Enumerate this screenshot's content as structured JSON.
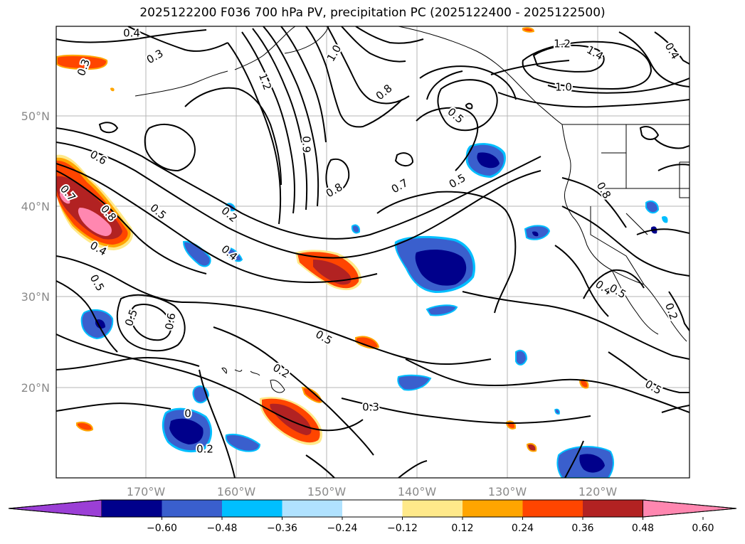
{
  "title": "2025122200 F036 700 hPa PV, precipitation PC (2025122400 - 2025122500)",
  "map": {
    "lat_ticks": [
      "50°N",
      "40°N",
      "30°N",
      "20°N"
    ],
    "lon_ticks": [
      "170°W",
      "160°W",
      "150°W",
      "140°W",
      "130°W",
      "120°W"
    ],
    "contour_labels": [
      "0.4",
      "0.3",
      "0.3",
      "1.2",
      "1.0",
      "1.2",
      "1.4",
      "1.0",
      "0.8",
      "0.8",
      "0.5",
      "0.6",
      "0.9",
      "0.4",
      "0.8",
      "0.7",
      "0.5",
      "0.2",
      "0.4",
      "0.7",
      "0.8",
      "0.5",
      "0.4",
      "0.5",
      "0.4",
      "0.5",
      "0.6",
      "0.5",
      "0.5",
      "0.2",
      "0.3",
      "0.2",
      "0.2",
      "0",
      "0.5"
    ]
  },
  "colorbar": {
    "tick_labels": [
      "−0.60",
      "−0.48",
      "−0.36",
      "−0.24",
      "−0.12",
      "0.12",
      "0.24",
      "0.36",
      "0.48",
      "0.60"
    ],
    "colors": [
      "#9b3fd6",
      "#00008b",
      "#3a5fcd",
      "#00bfff",
      "#b0e2ff",
      "#ffffff",
      "#ffe98a",
      "#ffa500",
      "#ff4500",
      "#b22222",
      "#ff87b0"
    ]
  }
}
